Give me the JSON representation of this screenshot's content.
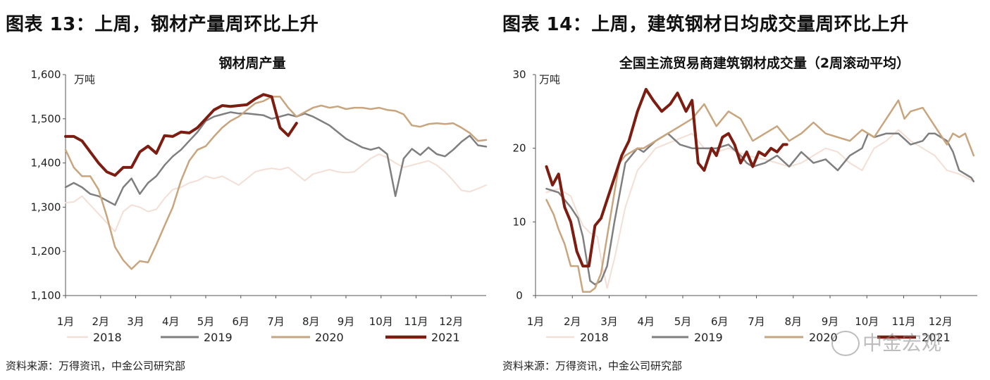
{
  "figures": [
    {
      "fig_title": "图表 13：上周，钢材产量周环比上升",
      "source": "资料来源：万得资讯，中金公司研究部"
    },
    {
      "fig_title": "图表 14：上周，建筑钢材日均成交量周环比上升",
      "source": "资料来源：万得资讯，中金公司研究部"
    }
  ],
  "watermark": {
    "text": "中金宏观"
  },
  "chart_data": [
    {
      "type": "line",
      "title": "钢材周产量",
      "unit": "万吨",
      "x_tick_labels": [
        "1月",
        "2月",
        "3月",
        "4月",
        "5月",
        "6月",
        "7月",
        "8月",
        "9月",
        "10月",
        "11月",
        "12月"
      ],
      "y_ticks": [
        "1,100",
        "1,200",
        "1,300",
        "1,400",
        "1,500",
        "1,600"
      ],
      "ylim": [
        1100,
        1600
      ],
      "x_unit": "week of year",
      "xlim": [
        1,
        52
      ],
      "legend_position": "bottom",
      "series": [
        {
          "name": "2018",
          "color": "#f3dfd5",
          "width": 2,
          "x": [
            1,
            2,
            3,
            4,
            5,
            6,
            7,
            8,
            9,
            10,
            11,
            12,
            13,
            14,
            15,
            16,
            17,
            18,
            19,
            20,
            21,
            22,
            23,
            24,
            25,
            26,
            27,
            28,
            29,
            30,
            31,
            32,
            33,
            34,
            35,
            36,
            37,
            38,
            39,
            40,
            41,
            42,
            43,
            44,
            45,
            46,
            47,
            48,
            49,
            50,
            51,
            52
          ],
          "y": [
            1310,
            1312,
            1325,
            1305,
            1285,
            1265,
            1245,
            1290,
            1305,
            1300,
            1290,
            1295,
            1320,
            1340,
            1345,
            1355,
            1360,
            1370,
            1365,
            1370,
            1360,
            1350,
            1365,
            1380,
            1385,
            1388,
            1385,
            1390,
            1375,
            1360,
            1375,
            1380,
            1385,
            1380,
            1378,
            1380,
            1395,
            1410,
            1420,
            1412,
            1400,
            1390,
            1395,
            1400,
            1405,
            1395,
            1380,
            1360,
            1338,
            1335,
            1342,
            1350
          ]
        },
        {
          "name": "2019",
          "color": "#7f7f7f",
          "width": 2.5,
          "x": [
            1,
            2,
            3,
            4,
            5,
            6,
            7,
            8,
            9,
            10,
            11,
            12,
            13,
            14,
            15,
            16,
            17,
            18,
            19,
            20,
            21,
            22,
            23,
            24,
            25,
            26,
            27,
            28,
            29,
            30,
            31,
            32,
            33,
            34,
            35,
            36,
            37,
            38,
            39,
            40,
            41,
            42,
            43,
            44,
            45,
            46,
            47,
            48,
            49,
            50,
            51,
            52
          ],
          "y": [
            1345,
            1355,
            1345,
            1330,
            1325,
            1315,
            1305,
            1345,
            1365,
            1330,
            1355,
            1370,
            1395,
            1415,
            1430,
            1450,
            1470,
            1495,
            1505,
            1510,
            1515,
            1512,
            1512,
            1510,
            1508,
            1500,
            1505,
            1510,
            1505,
            1512,
            1505,
            1495,
            1485,
            1470,
            1455,
            1445,
            1435,
            1430,
            1435,
            1420,
            1325,
            1410,
            1432,
            1418,
            1435,
            1420,
            1415,
            1430,
            1448,
            1462,
            1440,
            1437
          ]
        },
        {
          "name": "2020",
          "color": "#c9a57e",
          "width": 2.5,
          "x": [
            1,
            2,
            3,
            4,
            5,
            6,
            7,
            8,
            9,
            10,
            11,
            12,
            13,
            14,
            15,
            16,
            17,
            18,
            19,
            20,
            21,
            22,
            23,
            24,
            25,
            26,
            27,
            28,
            29,
            30,
            31,
            32,
            33,
            34,
            35,
            36,
            37,
            38,
            39,
            40,
            41,
            42,
            43,
            44,
            45,
            46,
            47,
            48,
            49,
            50,
            51,
            52
          ],
          "y": [
            1430,
            1390,
            1370,
            1370,
            1340,
            1280,
            1210,
            1180,
            1160,
            1178,
            1175,
            1215,
            1258,
            1300,
            1360,
            1405,
            1430,
            1438,
            1460,
            1480,
            1495,
            1505,
            1520,
            1535,
            1540,
            1550,
            1550,
            1525,
            1505,
            1515,
            1525,
            1530,
            1525,
            1528,
            1522,
            1525,
            1525,
            1522,
            1525,
            1520,
            1518,
            1510,
            1485,
            1482,
            1488,
            1490,
            1488,
            1490,
            1480,
            1468,
            1450,
            1452
          ]
        },
        {
          "name": "2021",
          "color": "#7d1c10",
          "width": 4,
          "x": [
            1,
            2,
            3,
            4,
            5,
            6,
            7,
            8,
            9,
            10,
            11,
            12,
            13,
            14,
            15,
            16,
            17,
            18,
            19,
            20,
            21,
            22,
            23,
            24,
            25,
            26,
            27,
            28,
            29
          ],
          "y": [
            1460,
            1460,
            1450,
            1425,
            1400,
            1380,
            1372,
            1390,
            1390,
            1425,
            1438,
            1422,
            1462,
            1460,
            1470,
            1468,
            1480,
            1500,
            1520,
            1530,
            1528,
            1530,
            1532,
            1545,
            1555,
            1550,
            1480,
            1462,
            1490
          ]
        }
      ]
    },
    {
      "type": "line",
      "title": "全国主流贸易商建筑钢材成交量（2周滚动平均）",
      "unit": "万吨",
      "x_tick_labels": [
        "1月",
        "2月",
        "3月",
        "4月",
        "5月",
        "6月",
        "7月",
        "8月",
        "9月",
        "10月",
        "11月",
        "12月"
      ],
      "y_ticks": [
        "0",
        "10",
        "20",
        "30"
      ],
      "ylim": [
        0,
        30
      ],
      "x_unit": "day of year",
      "xlim": [
        1,
        365
      ],
      "legend_position": "bottom",
      "series": [
        {
          "name": "2018",
          "color": "#f3dfd5",
          "width": 2,
          "x": [
            10,
            20,
            30,
            36,
            40,
            46,
            52,
            56,
            60,
            66,
            75,
            85,
            100,
            115,
            130,
            140,
            150,
            160,
            175,
            190,
            200,
            210,
            220,
            230,
            240,
            250,
            260,
            270,
            280,
            290,
            300,
            310,
            320,
            330,
            340,
            350,
            356,
            362
          ],
          "y": [
            14,
            14.5,
            13.5,
            11,
            9.5,
            8.5,
            8,
            4,
            1,
            5,
            12,
            17,
            20,
            21,
            22,
            20,
            19.5,
            20,
            19,
            18.5,
            18,
            17.5,
            18,
            19,
            20,
            19.5,
            18,
            17,
            20,
            21,
            22.5,
            21,
            20,
            19,
            17,
            16.5,
            16,
            15.5
          ]
        },
        {
          "name": "2019",
          "color": "#7f7f7f",
          "width": 2.5,
          "x": [
            10,
            20,
            25,
            30,
            36,
            40,
            46,
            50,
            55,
            60,
            66,
            75,
            80,
            85,
            90,
            100,
            110,
            120,
            130,
            140,
            150,
            160,
            170,
            175,
            180,
            190,
            200,
            210,
            220,
            230,
            240,
            250,
            260,
            270,
            275,
            280,
            290,
            300,
            310,
            320,
            325,
            330,
            340,
            345,
            350,
            355,
            360,
            362
          ],
          "y": [
            14.5,
            14,
            13,
            12,
            10.5,
            8,
            2,
            1.5,
            2,
            4,
            10,
            18,
            19,
            20,
            19.5,
            21,
            22,
            20.5,
            20,
            20,
            20,
            20.5,
            19,
            18,
            17.5,
            18,
            19,
            17.5,
            19.5,
            18,
            18.5,
            17,
            19,
            20,
            22,
            21.5,
            22,
            22,
            20.5,
            21,
            22,
            22,
            21,
            19.5,
            17,
            16.5,
            16,
            15.5
          ]
        },
        {
          "name": "2020",
          "color": "#c9a57e",
          "width": 2.5,
          "x": [
            10,
            16,
            20,
            25,
            30,
            36,
            40,
            46,
            50,
            55,
            60,
            66,
            70,
            75,
            80,
            85,
            90,
            100,
            110,
            120,
            130,
            140,
            150,
            160,
            170,
            180,
            190,
            200,
            210,
            220,
            230,
            240,
            250,
            260,
            270,
            280,
            290,
            300,
            305,
            310,
            320,
            330,
            340,
            345,
            350,
            355,
            362
          ],
          "y": [
            13,
            11,
            9,
            7,
            4,
            4,
            0.5,
            0.5,
            1,
            3,
            8,
            14,
            18,
            19,
            19.5,
            20,
            20,
            21,
            22,
            23,
            24,
            26,
            23,
            25,
            24,
            21,
            22,
            23,
            21,
            22,
            23.5,
            22,
            21.5,
            21,
            22.5,
            21.5,
            24,
            26.5,
            24,
            25,
            25.5,
            23,
            20.5,
            22,
            21.5,
            22,
            19
          ]
        },
        {
          "name": "2021",
          "color": "#7d1c10",
          "width": 4,
          "x": [
            10,
            15,
            20,
            25,
            30,
            35,
            40,
            45,
            50,
            55,
            60,
            66,
            72,
            78,
            85,
            92,
            98,
            105,
            112,
            118,
            125,
            130,
            135,
            140,
            146,
            150,
            155,
            160,
            165,
            170,
            175,
            180,
            185,
            190,
            195,
            200,
            205,
            208
          ],
          "y": [
            17.5,
            15,
            16.5,
            12,
            10,
            6,
            4,
            4,
            9.5,
            10.5,
            13,
            16,
            19,
            21,
            25,
            28,
            26.5,
            25,
            26,
            27.5,
            25,
            26.5,
            18,
            17,
            20,
            19,
            21.5,
            22,
            20.5,
            18,
            19.5,
            17.5,
            19.5,
            19,
            20,
            19.5,
            20.5,
            20.5
          ]
        }
      ]
    }
  ]
}
